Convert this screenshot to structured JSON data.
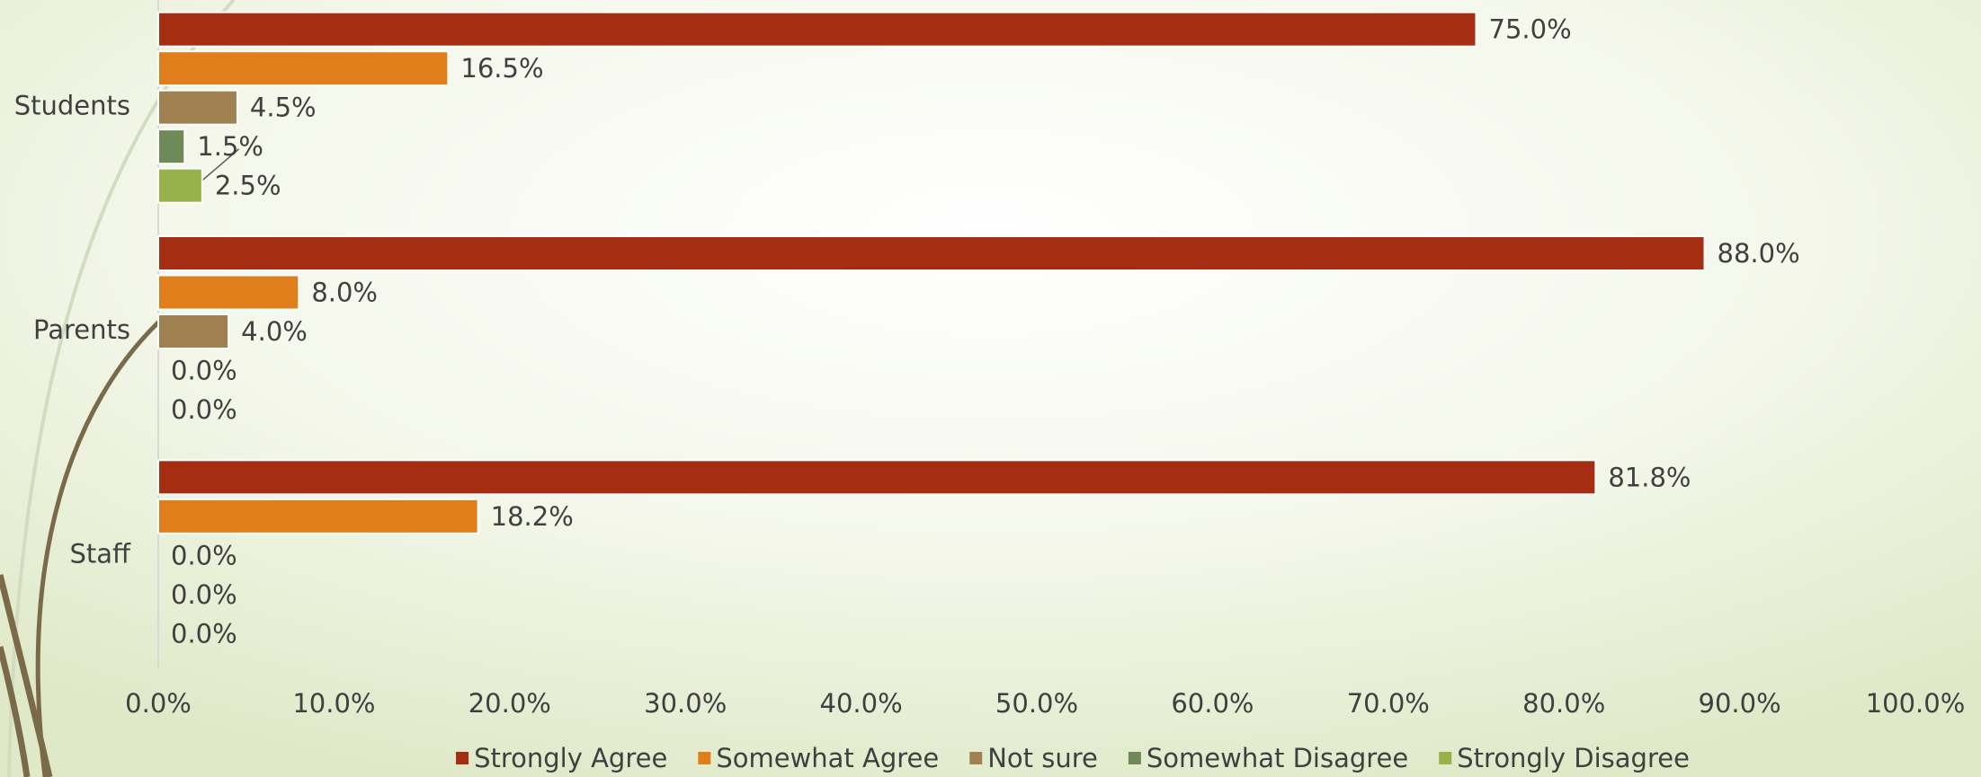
{
  "chart_data": {
    "type": "bar",
    "orientation": "horizontal",
    "categories": [
      "Students",
      "Parents",
      "Staff"
    ],
    "series": [
      {
        "name": "Strongly Agree",
        "color": "#a52d12",
        "values": [
          75.0,
          88.0,
          81.8
        ],
        "value_labels": [
          "75.0%",
          "88.0%",
          "81.8%"
        ]
      },
      {
        "name": "Somewhat Agree",
        "color": "#e07e1b",
        "values": [
          16.5,
          8.0,
          18.2
        ],
        "value_labels": [
          "16.5%",
          "8.0%",
          "18.2%"
        ]
      },
      {
        "name": "Not sure",
        "color": "#a08150",
        "values": [
          4.5,
          4.0,
          0.0
        ],
        "value_labels": [
          "4.5%",
          "4.0%",
          "0.0%"
        ]
      },
      {
        "name": "Somewhat Disagree",
        "color": "#6e8a57",
        "values": [
          1.5,
          0.0,
          0.0
        ],
        "value_labels": [
          "1.5%",
          "0.0%",
          "0.0%"
        ]
      },
      {
        "name": "Strongly Disagree",
        "color": "#97b14b",
        "values": [
          2.5,
          0.0,
          0.0
        ],
        "value_labels": [
          "2.5%",
          "0.0%",
          "0.0%"
        ]
      }
    ],
    "xlim": [
      0,
      100
    ],
    "xticks": [
      {
        "value": 0,
        "label": "0.0%"
      },
      {
        "value": 10,
        "label": "10.0%"
      },
      {
        "value": 20,
        "label": "20.0%"
      },
      {
        "value": 30,
        "label": "30.0%"
      },
      {
        "value": 40,
        "label": "40.0%"
      },
      {
        "value": 50,
        "label": "50.0%"
      },
      {
        "value": 60,
        "label": "60.0%"
      },
      {
        "value": 70,
        "label": "70.0%"
      },
      {
        "value": 80,
        "label": "80.0%"
      },
      {
        "value": 90,
        "label": "90.0%"
      },
      {
        "value": 100,
        "label": "100.0%"
      }
    ],
    "grid": false,
    "legend": "bottom"
  }
}
